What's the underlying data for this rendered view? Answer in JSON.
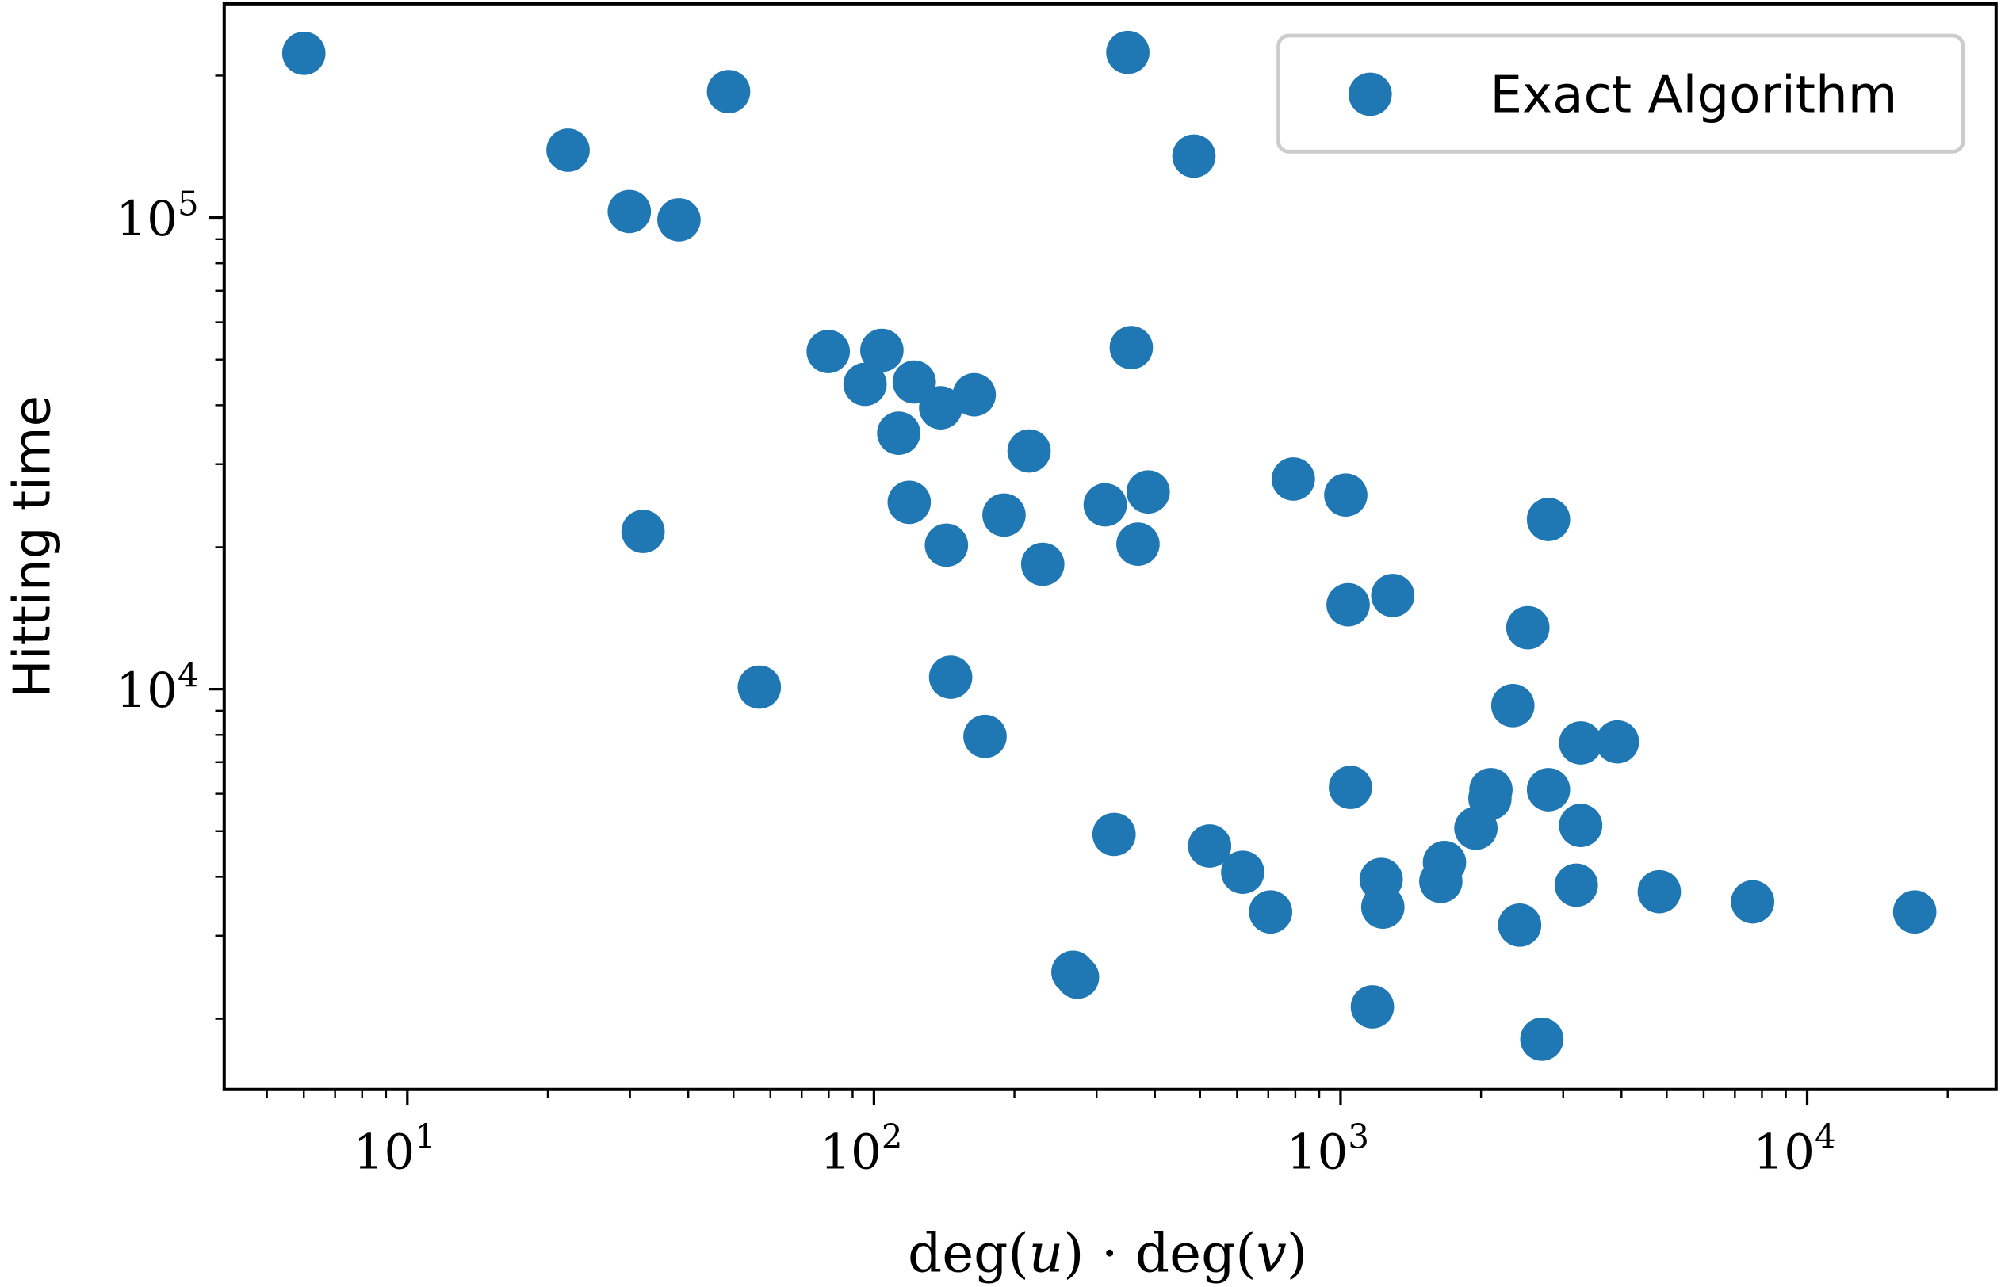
{
  "chart_data": {
    "type": "scatter",
    "xlabel": "deg(u) · deg(v)",
    "xlabel_parts": [
      "deg(",
      "u",
      ") · deg(",
      "v",
      ")"
    ],
    "ylabel": "Hitting time",
    "xscale": "log",
    "yscale": "log",
    "xlim": [
      4.05,
      25400
    ],
    "ylim": [
      1416,
      284000
    ],
    "grid": false,
    "legend": {
      "placement": "top-right",
      "entries": [
        "Exact Algorithm"
      ]
    },
    "color": "#1f77b4",
    "x_ticks": [
      {
        "base": "10",
        "exp": "1",
        "value": 10
      },
      {
        "base": "10",
        "exp": "2",
        "value": 100
      },
      {
        "base": "10",
        "exp": "3",
        "value": 1000
      },
      {
        "base": "10",
        "exp": "4",
        "value": 10000
      }
    ],
    "y_ticks": [
      {
        "base": "10",
        "exp": "4",
        "value": 10000
      },
      {
        "base": "10",
        "exp": "5",
        "value": 100000
      }
    ],
    "series": [
      {
        "name": "Exact Algorithm",
        "points": [
          [
            6,
            223000
          ],
          [
            48.8,
            185000
          ],
          [
            350,
            224000
          ],
          [
            22.1,
            139000
          ],
          [
            485,
            135000
          ],
          [
            29.9,
            103000
          ],
          [
            38.2,
            98900
          ],
          [
            79.8,
            52000
          ],
          [
            104,
            52300
          ],
          [
            356,
            53000
          ],
          [
            95.7,
            44300
          ],
          [
            122,
            44800
          ],
          [
            164,
            42100
          ],
          [
            139,
            39500
          ],
          [
            113,
            34900
          ],
          [
            215,
            32000
          ],
          [
            119,
            24900
          ],
          [
            190,
            23400
          ],
          [
            313,
            24600
          ],
          [
            387,
            26200
          ],
          [
            32,
            21600
          ],
          [
            143,
            20200
          ],
          [
            368,
            20300
          ],
          [
            230,
            18400
          ],
          [
            792,
            27900
          ],
          [
            1026,
            25800
          ],
          [
            2790,
            22900
          ],
          [
            1038,
            15100
          ],
          [
            1294,
            15800
          ],
          [
            2520,
            13500
          ],
          [
            56.8,
            10100
          ],
          [
            146,
            10600
          ],
          [
            173,
            7940
          ],
          [
            2340,
            9230
          ],
          [
            3270,
            7690
          ],
          [
            3920,
            7730
          ],
          [
            1050,
            6190
          ],
          [
            2100,
            6120
          ],
          [
            2090,
            5860
          ],
          [
            2790,
            6120
          ],
          [
            1950,
            5070
          ],
          [
            3270,
            5140
          ],
          [
            327,
            4920
          ],
          [
            524,
            4650
          ],
          [
            617,
            4090
          ],
          [
            1670,
            4290
          ],
          [
            1222,
            3950
          ],
          [
            1640,
            3910
          ],
          [
            3200,
            3840
          ],
          [
            4820,
            3720
          ],
          [
            7640,
            3540
          ],
          [
            17000,
            3370
          ],
          [
            708,
            3370
          ],
          [
            1232,
            3450
          ],
          [
            2420,
            3160
          ],
          [
            267,
            2510
          ],
          [
            273,
            2450
          ],
          [
            1170,
            2120
          ],
          [
            2700,
            1810
          ]
        ]
      }
    ]
  }
}
